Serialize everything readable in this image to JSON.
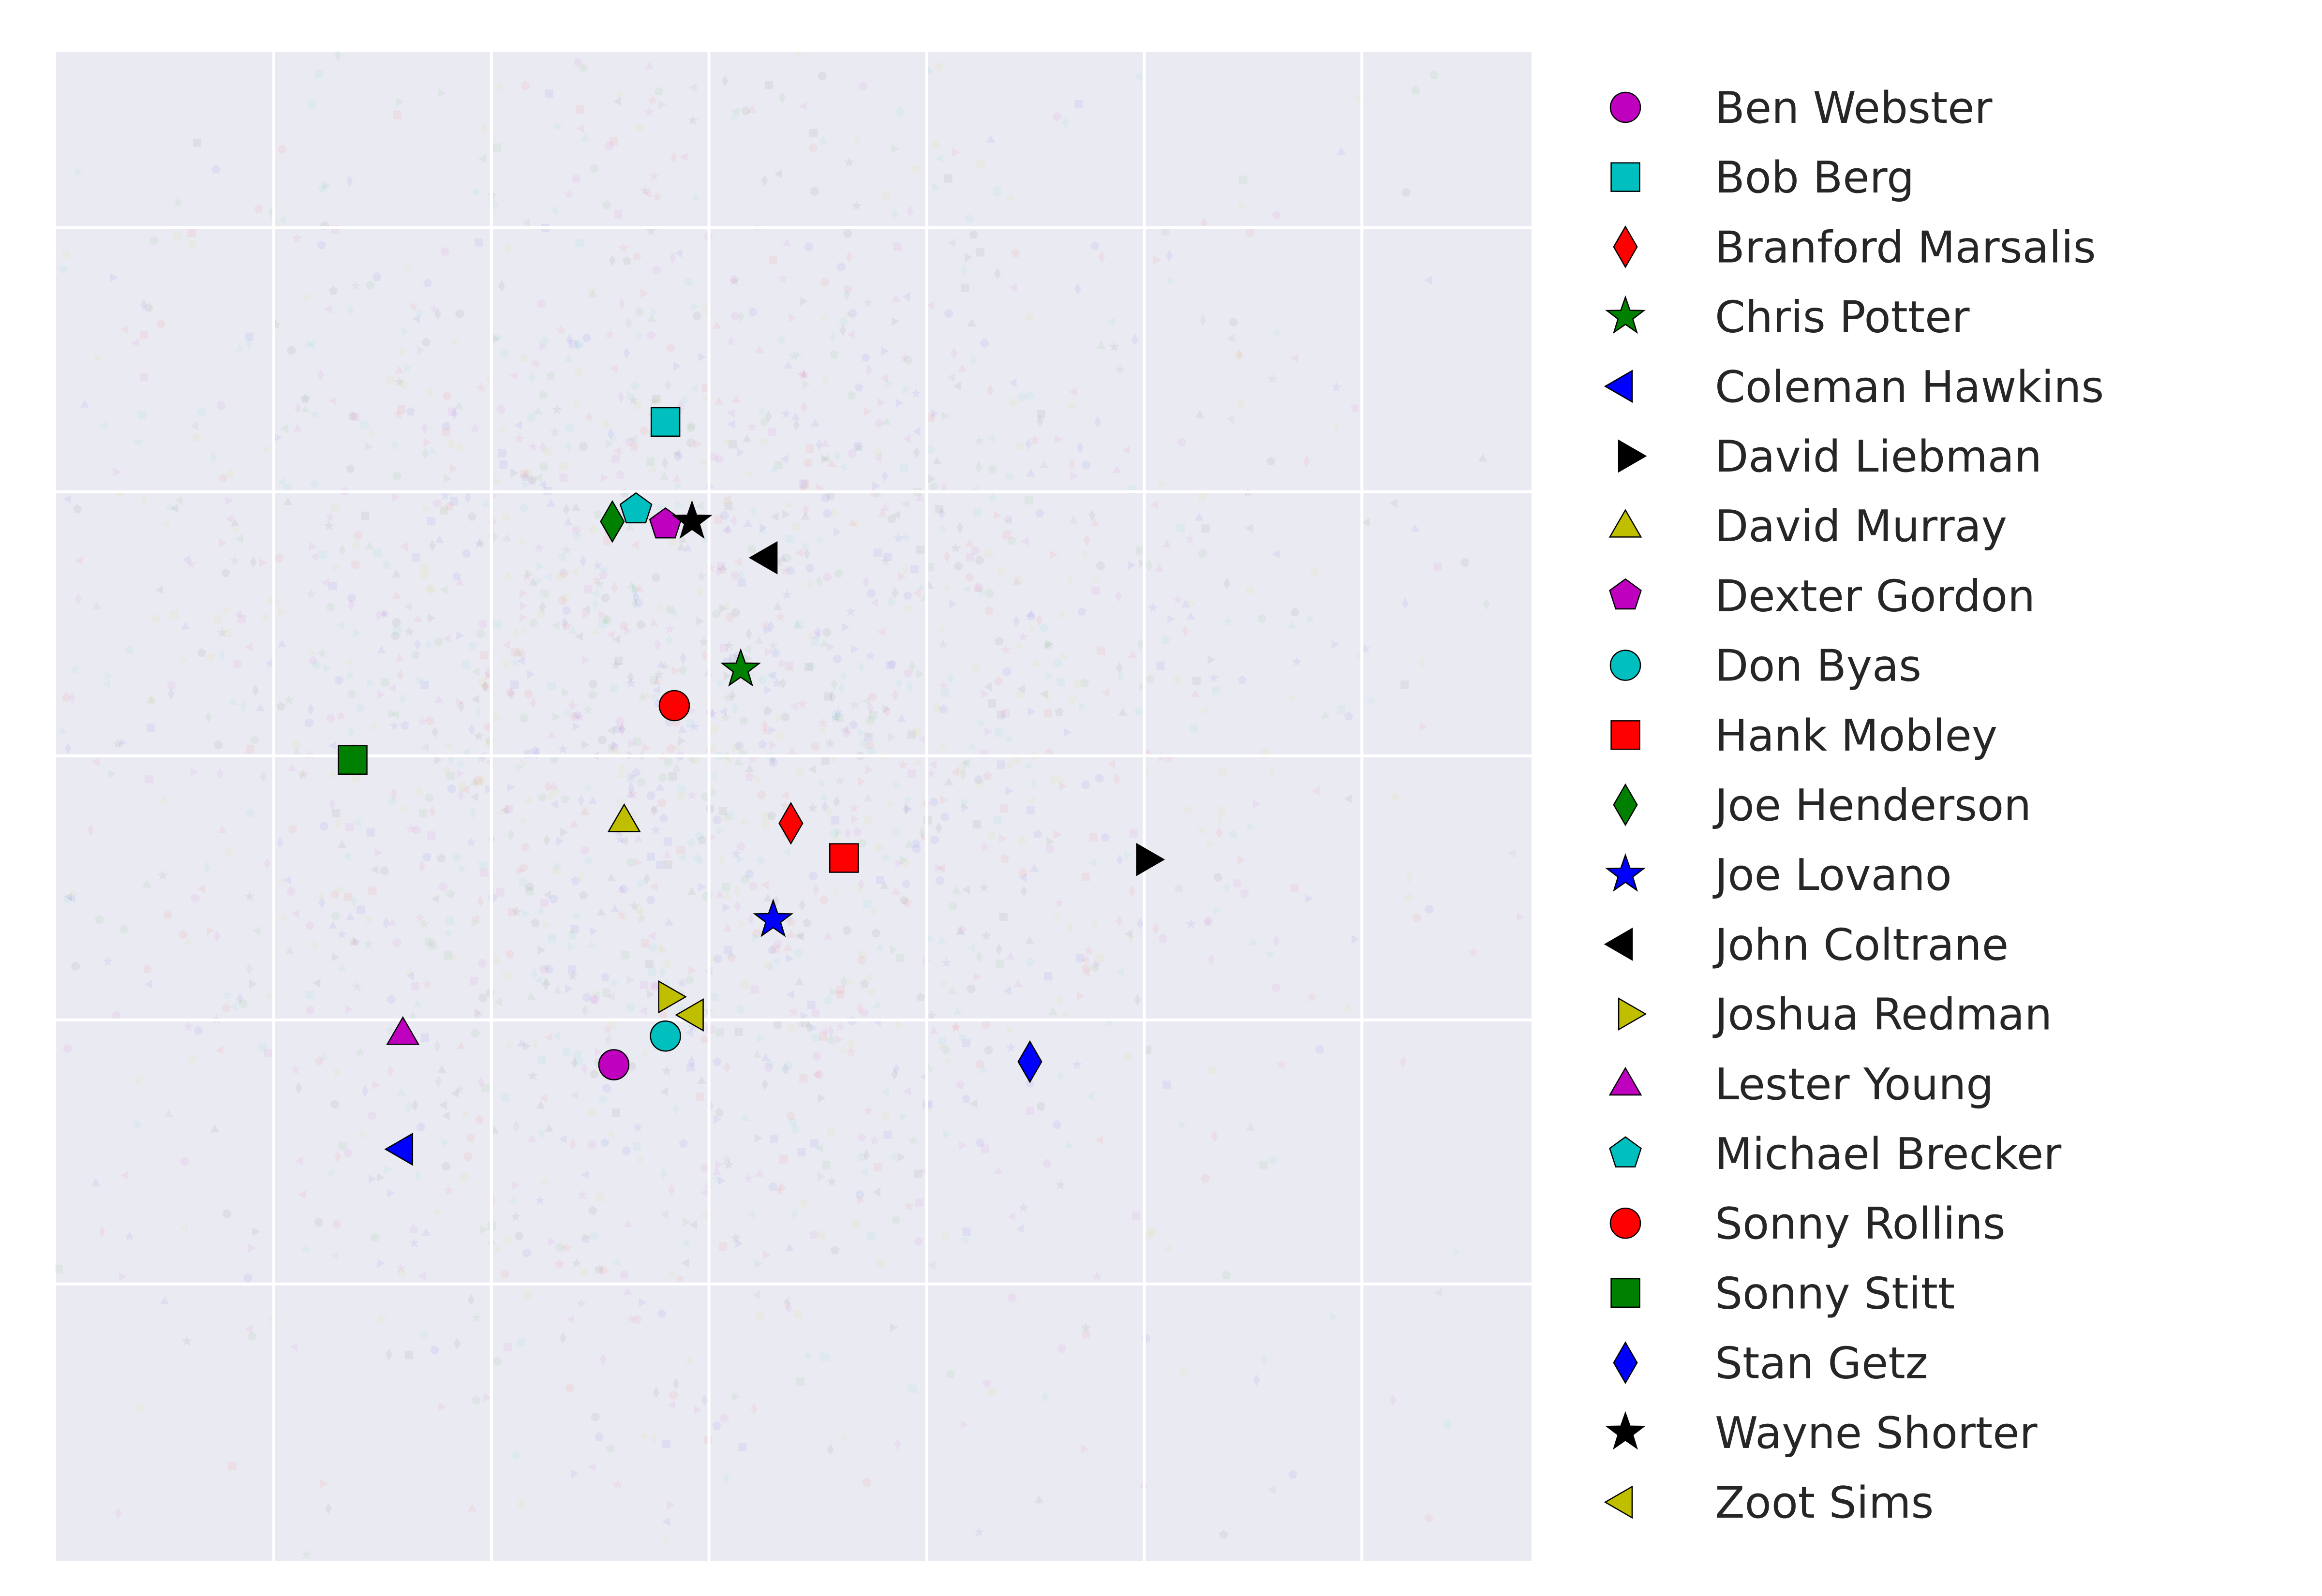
{
  "chart_data": {
    "type": "scatter",
    "title": "",
    "xlabel": "",
    "ylabel": "",
    "xlim": [
      0,
      1
    ],
    "ylim": [
      0,
      1
    ],
    "grid": true,
    "legend_position": "right",
    "background_noise": true,
    "series": [
      {
        "name": "Ben Webster",
        "marker": "circle",
        "color": "#bf00bf",
        "x": 0.378,
        "y": 0.329
      },
      {
        "name": "Bob Berg",
        "marker": "square",
        "color": "#00bfbf",
        "x": 0.413,
        "y": 0.755
      },
      {
        "name": "Branford Marsalis",
        "marker": "diamond",
        "color": "#ff0000",
        "x": 0.498,
        "y": 0.489
      },
      {
        "name": "Chris Potter",
        "marker": "star",
        "color": "#008000",
        "x": 0.464,
        "y": 0.591
      },
      {
        "name": "Coleman Hawkins",
        "marker": "triangle-left",
        "color": "#0000ff",
        "x": 0.237,
        "y": 0.273
      },
      {
        "name": "David Liebman",
        "marker": "triangle-right",
        "color": "#000000",
        "x": 0.737,
        "y": 0.465
      },
      {
        "name": "David Murray",
        "marker": "triangle-up",
        "color": "#bfbf00",
        "x": 0.385,
        "y": 0.491
      },
      {
        "name": "Dexter Gordon",
        "marker": "pentagon",
        "color": "#bf00bf",
        "x": 0.413,
        "y": 0.687
      },
      {
        "name": "Don Byas",
        "marker": "circle",
        "color": "#00bfbf",
        "x": 0.413,
        "y": 0.348
      },
      {
        "name": "Hank Mobley",
        "marker": "square",
        "color": "#ff0000",
        "x": 0.534,
        "y": 0.466
      },
      {
        "name": "Joe Henderson",
        "marker": "diamond",
        "color": "#008000",
        "x": 0.377,
        "y": 0.689
      },
      {
        "name": "Joe Lovano",
        "marker": "star",
        "color": "#0000ff",
        "x": 0.486,
        "y": 0.425
      },
      {
        "name": "John Coltrane",
        "marker": "triangle-left",
        "color": "#000000",
        "x": 0.484,
        "y": 0.665
      },
      {
        "name": "Joshua Redman",
        "marker": "triangle-right",
        "color": "#bfbf00",
        "x": 0.413,
        "y": 0.374
      },
      {
        "name": "Lester Young",
        "marker": "triangle-up",
        "color": "#bf00bf",
        "x": 0.235,
        "y": 0.35
      },
      {
        "name": "Michael Brecker",
        "marker": "pentagon",
        "color": "#00bfbf",
        "x": 0.393,
        "y": 0.697
      },
      {
        "name": "Sonny Rollins",
        "marker": "circle",
        "color": "#ff0000",
        "x": 0.419,
        "y": 0.567
      },
      {
        "name": "Sonny Stitt",
        "marker": "square",
        "color": "#008000",
        "x": 0.201,
        "y": 0.531
      },
      {
        "name": "Stan Getz",
        "marker": "diamond",
        "color": "#0000ff",
        "x": 0.66,
        "y": 0.331
      },
      {
        "name": "Wayne Shorter",
        "marker": "star",
        "color": "#000000",
        "x": 0.431,
        "y": 0.689
      },
      {
        "name": "Zoot Sims",
        "marker": "triangle-left",
        "color": "#bfbf00",
        "x": 0.434,
        "y": 0.362
      }
    ]
  }
}
